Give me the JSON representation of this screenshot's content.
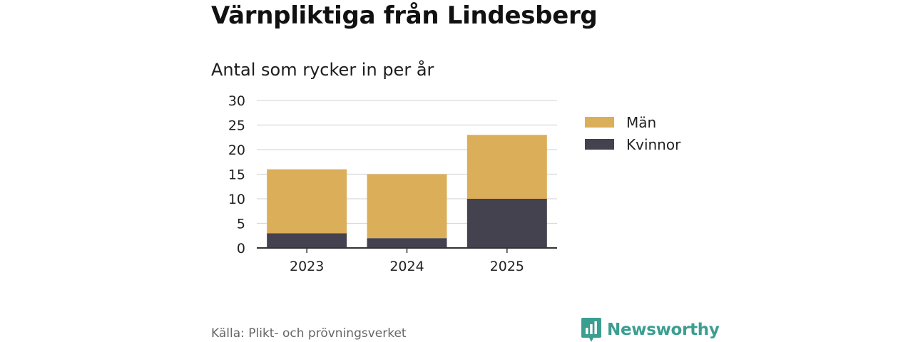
{
  "title": "Värnpliktiga från Lindesberg",
  "subtitle": "Antal som rycker in per år",
  "source": "Källa: Plikt- och prövningsverket",
  "brand": {
    "name": "Newsworthy",
    "color": "#3b9e90"
  },
  "chart_data": {
    "type": "bar",
    "stacked": true,
    "title": "Värnpliktiga från Lindesberg",
    "subtitle": "Antal som rycker in per år",
    "categories": [
      "2023",
      "2024",
      "2025"
    ],
    "series": [
      {
        "name": "Kvinnor",
        "values": [
          3,
          2,
          10
        ],
        "color": "#45424f"
      },
      {
        "name": "Män",
        "values": [
          13,
          13,
          13
        ],
        "color": "#dbae5a"
      }
    ],
    "legend": [
      "Män",
      "Kvinnor"
    ],
    "legend_position": "right",
    "ylim": [
      0,
      30
    ],
    "yticks": [
      "0",
      "5",
      "10",
      "15",
      "20",
      "25",
      "30"
    ],
    "grid": true,
    "xlabel": "",
    "ylabel": ""
  }
}
